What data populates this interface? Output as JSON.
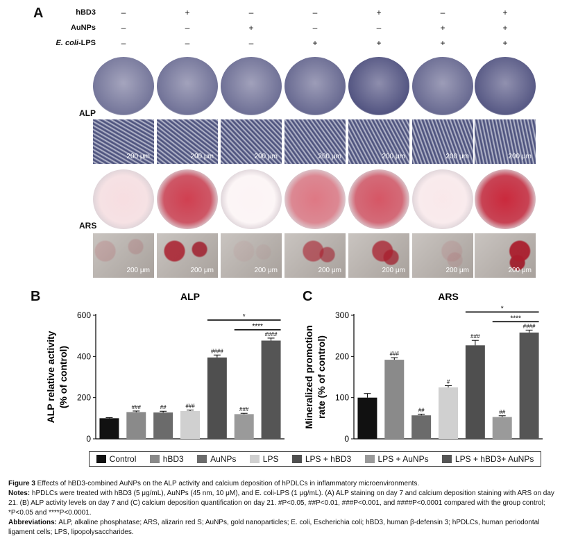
{
  "panelA": {
    "letter": "A",
    "treatments": [
      {
        "label": "hBD3",
        "signs": [
          "–",
          "+",
          "–",
          "–",
          "+",
          "–",
          "+"
        ]
      },
      {
        "label": "AuNPs",
        "signs": [
          "–",
          "–",
          "+",
          "–",
          "–",
          "+",
          "+"
        ]
      },
      {
        "label": "E. coli-LPS",
        "signs": [
          "–",
          "–",
          "–",
          "+",
          "+",
          "+",
          "+"
        ]
      }
    ],
    "row_labels": {
      "alp": "ALP",
      "ars": "ARS"
    },
    "scale_bar": "200 μm",
    "colors": {
      "alp_dish": "#8f8fae",
      "alp_micro": "#4a4f7a",
      "ars_dish": "#c21f34",
      "ars_micro": "#a02033"
    }
  },
  "panelB": {
    "letter": "B"
  },
  "panelC": {
    "letter": "C"
  },
  "chart_data": [
    {
      "type": "bar",
      "title": "ALP",
      "ylabel": "ALP relative activity\n(% of control)",
      "categories": [
        "Control",
        "hBD3",
        "AuNPs",
        "LPS",
        "LPS + hBD3",
        "LPS + AuNPs",
        "LPS + hBD3+ AuNPs"
      ],
      "values": [
        100,
        130,
        128,
        135,
        395,
        120,
        477
      ],
      "errors": [
        3,
        5,
        6,
        5,
        12,
        4,
        12
      ],
      "sig": [
        "",
        "###",
        "##",
        "###",
        "####",
        "###",
        "####"
      ],
      "ylim": [
        0,
        600
      ],
      "yticks": [
        0,
        200,
        400,
        600
      ],
      "brackets": [
        {
          "from": 4,
          "to": 6,
          "label": "*"
        },
        {
          "from": 5,
          "to": 6,
          "label": "****"
        }
      ]
    },
    {
      "type": "bar",
      "title": "ARS",
      "ylabel": "Mineralized promotion\nrate (% of control)",
      "categories": [
        "Control",
        "hBD3",
        "AuNPs",
        "LPS",
        "LPS + hBD3",
        "LPS + AuNPs",
        "LPS + hBD3+ AuNPs"
      ],
      "values": [
        100,
        192,
        57,
        125,
        227,
        53,
        258
      ],
      "errors": [
        10,
        5,
        3,
        4,
        12,
        3,
        6
      ],
      "sig": [
        "",
        "###",
        "##",
        "#",
        "###",
        "##",
        "####"
      ],
      "ylim": [
        0,
        300
      ],
      "yticks": [
        0,
        100,
        200,
        300
      ],
      "brackets": [
        {
          "from": 4,
          "to": 6,
          "label": "*"
        },
        {
          "from": 5,
          "to": 6,
          "label": "****"
        }
      ]
    }
  ],
  "legend": {
    "items": [
      {
        "label": "Control",
        "color": "#111111"
      },
      {
        "label": "hBD3",
        "color": "#8a8a8a"
      },
      {
        "label": "AuNPs",
        "color": "#6b6b6b"
      },
      {
        "label": "LPS",
        "color": "#d0d0d0"
      },
      {
        "label": "LPS + hBD3",
        "color": "#4f4f4f"
      },
      {
        "label": "LPS + AuNPs",
        "color": "#9a9a9a"
      },
      {
        "label": "LPS + hBD3+ AuNPs",
        "color": "#555555"
      }
    ]
  },
  "caption": {
    "figure_label": "Figure 3",
    "figure_text": " Effects of hBD3-combined AuNPs on the ALP activity and calcium deposition of hPDLCs in inflammatory microenvironments.",
    "notes_label": "Notes:",
    "notes_text": " hPDLCs were treated with hBD3 (5 μg/mL), AuNPs (45 nm, 10 μM), and E. coli-LPS (1 μg/mL). (A) ALP staining on day 7 and calcium deposition staining with ARS on day 21. (B) ALP activity levels on day 7 and (C) calcium deposition quantification on day 21. #P<0.05, ##P<0.01, ###P<0.001, and ####P<0.0001 compared with the group control; *P<0.05 and ****P<0.0001.",
    "abbr_label": "Abbreviations:",
    "abbr_text": " ALP, alkaline phosphatase; ARS, alizarin red S; AuNPs, gold nanoparticles; E. coli, Escherichia coli; hBD3, human β-defensin 3; hPDLCs, human periodontal ligament cells; LPS, lipopolysaccharides."
  }
}
